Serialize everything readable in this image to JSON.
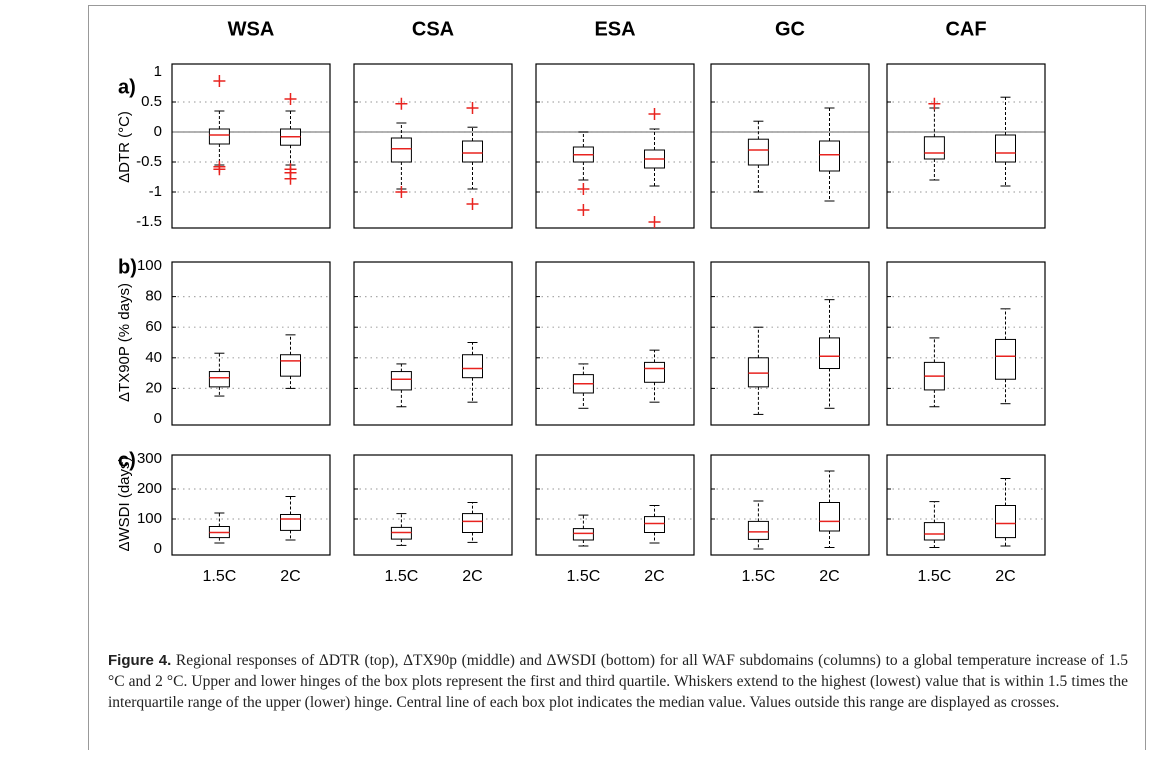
{
  "chart_data": {
    "type": "box",
    "columns": [
      "WSA",
      "CSA",
      "ESA",
      "GC",
      "CAF"
    ],
    "categories": [
      "1.5C",
      "2C"
    ],
    "rows": [
      {
        "label": "a)",
        "ylabel": "ΔDTR (°C)",
        "ylim": [
          -1.5,
          1
        ],
        "yticks": [
          -1.5,
          -1,
          -0.5,
          0,
          0.5,
          1
        ],
        "zero_line": true,
        "boxes": [
          [
            {
              "whisker_low": -0.55,
              "q1": -0.2,
              "median": -0.05,
              "q3": 0.05,
              "whisker_high": 0.35,
              "outliers": [
                0.85,
                -0.58,
                -0.62
              ]
            },
            {
              "whisker_low": -0.55,
              "q1": -0.22,
              "median": -0.08,
              "q3": 0.05,
              "whisker_high": 0.35,
              "outliers": [
                0.55,
                -0.62,
                -0.68,
                -0.78
              ]
            }
          ],
          [
            {
              "whisker_low": -0.95,
              "q1": -0.5,
              "median": -0.28,
              "q3": -0.1,
              "whisker_high": 0.15,
              "outliers": [
                0.47,
                -1.0
              ]
            },
            {
              "whisker_low": -0.95,
              "q1": -0.5,
              "median": -0.35,
              "q3": -0.15,
              "whisker_high": 0.08,
              "outliers": [
                0.4,
                -1.2
              ]
            }
          ],
          [
            {
              "whisker_low": -0.8,
              "q1": -0.5,
              "median": -0.38,
              "q3": -0.25,
              "whisker_high": 0,
              "outliers": [
                -0.95,
                -1.3
              ]
            },
            {
              "whisker_low": -0.9,
              "q1": -0.6,
              "median": -0.45,
              "q3": -0.3,
              "whisker_high": 0.05,
              "outliers": [
                0.3,
                -1.5
              ]
            }
          ],
          [
            {
              "whisker_low": -1.0,
              "q1": -0.55,
              "median": -0.3,
              "q3": -0.12,
              "whisker_high": 0.18,
              "outliers": []
            },
            {
              "whisker_low": -1.15,
              "q1": -0.65,
              "median": -0.38,
              "q3": -0.15,
              "whisker_high": 0.4,
              "outliers": []
            }
          ],
          [
            {
              "whisker_low": -0.8,
              "q1": -0.45,
              "median": -0.35,
              "q3": -0.08,
              "whisker_high": 0.4,
              "outliers": [
                0.47
              ]
            },
            {
              "whisker_low": -0.9,
              "q1": -0.5,
              "median": -0.35,
              "q3": -0.05,
              "whisker_high": 0.58,
              "outliers": []
            }
          ]
        ]
      },
      {
        "label": "b)",
        "ylabel": "ΔTX90P (% days)",
        "ylim": [
          0,
          100
        ],
        "yticks": [
          0,
          20,
          40,
          60,
          80,
          100
        ],
        "zero_line": false,
        "boxes": [
          [
            {
              "whisker_low": 15,
              "q1": 21,
              "median": 27,
              "q3": 31,
              "whisker_high": 43,
              "outliers": []
            },
            {
              "whisker_low": 20,
              "q1": 28,
              "median": 38,
              "q3": 42,
              "whisker_high": 55,
              "outliers": []
            }
          ],
          [
            {
              "whisker_low": 8,
              "q1": 19,
              "median": 26,
              "q3": 31,
              "whisker_high": 36,
              "outliers": []
            },
            {
              "whisker_low": 11,
              "q1": 27,
              "median": 33,
              "q3": 42,
              "whisker_high": 50,
              "outliers": []
            }
          ],
          [
            {
              "whisker_low": 7,
              "q1": 17,
              "median": 23,
              "q3": 29,
              "whisker_high": 36,
              "outliers": []
            },
            {
              "whisker_low": 11,
              "q1": 24,
              "median": 33,
              "q3": 37,
              "whisker_high": 45,
              "outliers": []
            }
          ],
          [
            {
              "whisker_low": 3,
              "q1": 21,
              "median": 30,
              "q3": 40,
              "whisker_high": 60,
              "outliers": []
            },
            {
              "whisker_low": 7,
              "q1": 33,
              "median": 41,
              "q3": 53,
              "whisker_high": 78,
              "outliers": []
            }
          ],
          [
            {
              "whisker_low": 8,
              "q1": 19,
              "median": 28,
              "q3": 37,
              "whisker_high": 53,
              "outliers": []
            },
            {
              "whisker_low": 10,
              "q1": 26,
              "median": 41,
              "q3": 52,
              "whisker_high": 72,
              "outliers": []
            }
          ]
        ]
      },
      {
        "label": "c)",
        "ylabel": "ΔWSDI (days)",
        "ylim": [
          0,
          300
        ],
        "yticks": [
          0,
          100,
          200,
          300
        ],
        "zero_line": false,
        "boxes": [
          [
            {
              "whisker_low": 20,
              "q1": 38,
              "median": 55,
              "q3": 75,
              "whisker_high": 120,
              "outliers": []
            },
            {
              "whisker_low": 30,
              "q1": 62,
              "median": 100,
              "q3": 115,
              "whisker_high": 175,
              "outliers": []
            }
          ],
          [
            {
              "whisker_low": 12,
              "q1": 33,
              "median": 55,
              "q3": 72,
              "whisker_high": 118,
              "outliers": []
            },
            {
              "whisker_low": 22,
              "q1": 55,
              "median": 92,
              "q3": 118,
              "whisker_high": 155,
              "outliers": []
            }
          ],
          [
            {
              "whisker_low": 10,
              "q1": 30,
              "median": 52,
              "q3": 68,
              "whisker_high": 113,
              "outliers": []
            },
            {
              "whisker_low": 20,
              "q1": 55,
              "median": 85,
              "q3": 108,
              "whisker_high": 145,
              "outliers": []
            }
          ],
          [
            {
              "whisker_low": 0,
              "q1": 32,
              "median": 57,
              "q3": 92,
              "whisker_high": 160,
              "outliers": []
            },
            {
              "whisker_low": 5,
              "q1": 60,
              "median": 92,
              "q3": 155,
              "whisker_high": 260,
              "outliers": []
            }
          ],
          [
            {
              "whisker_low": 5,
              "q1": 30,
              "median": 50,
              "q3": 88,
              "whisker_high": 158,
              "outliers": []
            },
            {
              "whisker_low": 10,
              "q1": 38,
              "median": 85,
              "q3": 145,
              "whisker_high": 235,
              "outliers": []
            }
          ]
        ]
      }
    ]
  },
  "caption": {
    "label": "Figure 4.",
    "text": "Regional responses of ΔDTR (top), ΔTX90p (middle) and ΔWSDI (bottom) for all WAF subdomains (columns) to a global temperature increase of 1.5 °C and 2 °C. Upper and lower hinges of the box plots represent the first and third quartile. Whiskers extend to the highest (lowest) value that is within 1.5 times the interquartile range of the upper (lower) hinge. Central line of each box plot indicates the median value. Values outside this range are displayed as crosses."
  }
}
